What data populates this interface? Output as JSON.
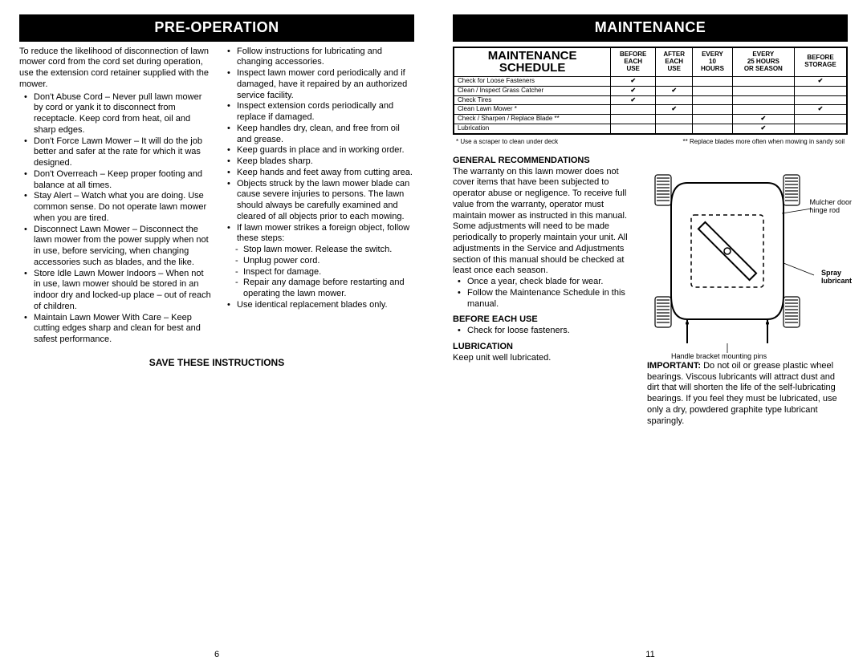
{
  "left": {
    "header": "PRE-OPERATION",
    "intro": "To reduce the likelihood of disconnection of lawn mower cord from the cord set during operation, use the extension cord retainer supplied with the mower.",
    "col1_bullets": [
      "Don't Abuse Cord – Never pull lawn mower by cord or yank it to disconnect from receptacle.  Keep cord from heat, oil and sharp edges.",
      "Don't Force Lawn Mower – It will do the job better and safer at the rate for which it was designed.",
      "Don't Overreach – Keep proper footing and balance at all times.",
      "Stay Alert – Watch what you are doing. Use common sense. Do not operate lawn mower when you are tired.",
      "Disconnect Lawn Mower – Disconnect the lawn mower from the power supply when not in use, before servicing, when changing accessories such as blades, and the like.",
      "Store Idle Lawn Mower Indoors – When not in use, lawn mower should be stored in an indoor dry and locked-up place – out of reach of children.",
      "Maintain Lawn Mower With Care – Keep cutting edges sharp and clean for best and safest performance."
    ],
    "col2_bullets_a": [
      "Follow instructions for lubricating and changing accessories.",
      "Inspect lawn mower cord periodically and if damaged, have it repaired by an authorized service facility.",
      "Inspect extension cords periodically and replace if damaged.",
      "Keep handles dry, clean, and free from oil and grease.",
      "Keep guards in place and in working order.",
      "Keep blades sharp.",
      "Keep hands and feet away from cutting area.",
      "Objects struck by the lawn mower blade can cause severe injuries to persons. The lawn should always be carefully examined and cleared of all objects prior to each mowing.",
      "If lawn mower strikes a foreign object, follow these steps:"
    ],
    "col2_dashes": [
      "Stop lawn mower. Release the switch.",
      "Unplug power cord.",
      "Inspect for damage.",
      "Repair any damage before restarting and operating the lawn mower."
    ],
    "col2_bullets_b": [
      "Use identical replacement blades only."
    ],
    "save": "SAVE THESE INSTRUCTIONS",
    "page_num": "6"
  },
  "right": {
    "header": "MAINTENANCE",
    "table": {
      "schedule_label_1": "MAINTENANCE",
      "schedule_label_2": "SCHEDULE",
      "cols": [
        {
          "l1": "BEFORE",
          "l2": "EACH",
          "l3": "USE"
        },
        {
          "l1": "AFTER",
          "l2": "EACH",
          "l3": "USE"
        },
        {
          "l1": "EVERY",
          "l2": "10",
          "l3": "HOURS"
        },
        {
          "l1": "EVERY",
          "l2": "25 HOURS",
          "l3": "OR SEASON"
        },
        {
          "l1": "BEFORE",
          "l2": "STORAGE",
          "l3": ""
        }
      ],
      "rows": [
        {
          "label": "Check for Loose Fasteners",
          "marks": [
            true,
            false,
            false,
            false,
            true
          ]
        },
        {
          "label": "Clean / Inspect Grass Catcher",
          "marks": [
            true,
            true,
            false,
            false,
            false
          ]
        },
        {
          "label": "Check Tires",
          "marks": [
            true,
            false,
            false,
            false,
            false
          ]
        },
        {
          "label": "Clean Lawn Mower *",
          "marks": [
            false,
            true,
            false,
            false,
            true
          ]
        },
        {
          "label": "Check / Sharpen / Replace Blade **",
          "marks": [
            false,
            false,
            false,
            true,
            false
          ]
        },
        {
          "label": "Lubrication",
          "marks": [
            false,
            false,
            false,
            true,
            false
          ]
        }
      ],
      "footnote_left": "* Use a scraper to clean under deck",
      "footnote_right": "** Replace blades more often when mowing in sandy soil"
    },
    "gen_rec_head": "GENERAL RECOMMENDATIONS",
    "gen_rec_p1": "The warranty on this lawn mower does not cover items that have been subjected to operator abuse or negligence.  To receive full value from the warranty, operator must maintain mower as instructed in this manual.",
    "gen_rec_p2": "Some adjustments will need to be made periodically to properly maintain your unit. All adjustments in the Service and Adjustments section of this manual should be checked at least once each season.",
    "gen_rec_bullets": [
      "Once a year, check blade for wear.",
      "Follow the Maintenance Schedule in this manual."
    ],
    "before_head": "BEFORE EACH USE",
    "before_bullets": [
      "Check for loose fasteners."
    ],
    "lub_head": "LUBRICATION",
    "lub_text": "Keep unit well lubricated.",
    "diagram": {
      "mulcher_l1": "Mulcher door",
      "mulcher_l2": "hinge rod",
      "spray_l1": "Spray",
      "spray_l2": "lubricant",
      "handle_label": "Handle bracket mounting pins"
    },
    "important_label": "IMPORTANT:",
    "important_text": "Do not oil or grease plastic wheel bearings.  Viscous lubricants will attract dust and dirt that will shorten the life of the self-lubricating bearings.  If you feel they must be lubricated, use only a dry, powdered graphite type lubricant sparingly.",
    "page_num": "11"
  }
}
